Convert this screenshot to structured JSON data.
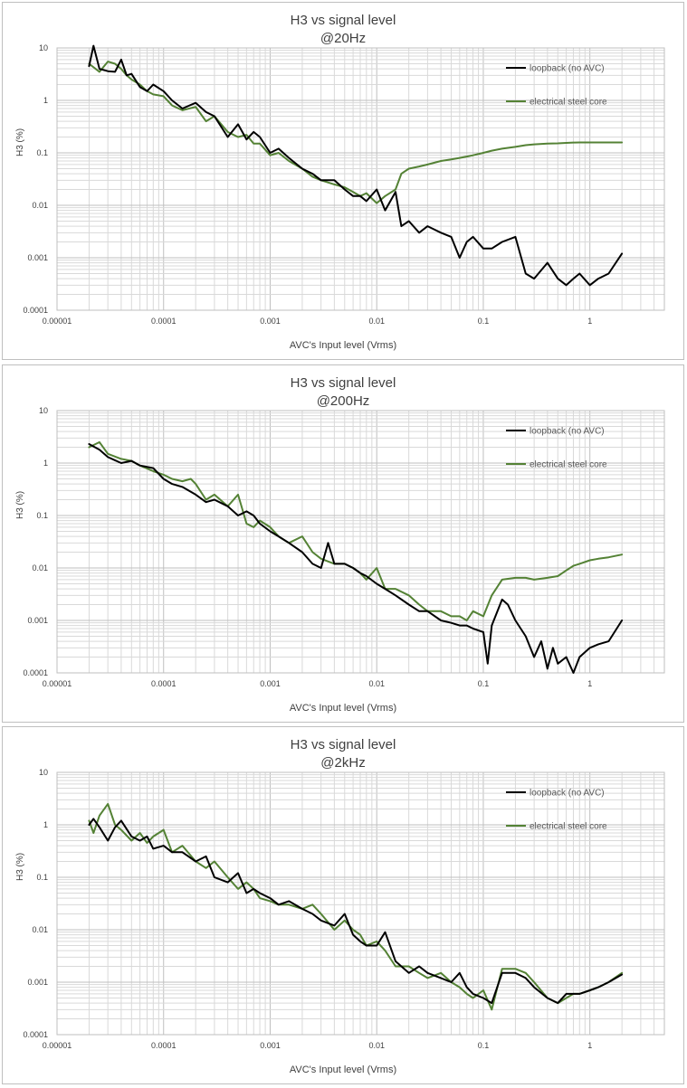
{
  "chart_data": [
    {
      "type": "line",
      "title": "H3 vs signal level",
      "subtitle": "@20Hz",
      "xlabel": "AVC's Input level (Vrms)",
      "ylabel": "H3 (%)",
      "x_scale": "log",
      "y_scale": "log",
      "xlim": [
        1e-05,
        5
      ],
      "ylim": [
        0.0001,
        10
      ],
      "x_tick_labels": [
        "0.00001",
        "0.0001",
        "0.001",
        "0.01",
        "0.1",
        "1"
      ],
      "y_tick_labels": [
        "10",
        "1",
        "0.1",
        "0.01",
        "0.001",
        "0.0001"
      ],
      "grid": true,
      "legend_position": "top-right",
      "series": [
        {
          "name": "loopback (no AVC)",
          "color": "#000000",
          "x": [
            2e-05,
            2.2e-05,
            2.5e-05,
            3e-05,
            3.5e-05,
            4e-05,
            4.5e-05,
            5e-05,
            6e-05,
            7e-05,
            8e-05,
            0.0001,
            0.00012,
            0.00015,
            0.0002,
            0.00025,
            0.0003,
            0.0004,
            0.0005,
            0.0006,
            0.0007,
            0.0008,
            0.001,
            0.0012,
            0.0015,
            0.002,
            0.0025,
            0.003,
            0.004,
            0.005,
            0.006,
            0.007,
            0.008,
            0.01,
            0.012,
            0.015,
            0.017,
            0.02,
            0.025,
            0.03,
            0.04,
            0.05,
            0.06,
            0.07,
            0.08,
            0.1,
            0.12,
            0.15,
            0.2,
            0.25,
            0.3,
            0.4,
            0.5,
            0.6,
            0.7,
            0.8,
            1.0,
            1.2,
            1.5,
            2.0
          ],
          "y": [
            4.5,
            11.0,
            4.0,
            3.6,
            3.5,
            6.0,
            3.0,
            3.2,
            1.8,
            1.5,
            2.0,
            1.5,
            1.0,
            0.7,
            0.9,
            0.6,
            0.5,
            0.2,
            0.35,
            0.18,
            0.25,
            0.2,
            0.1,
            0.12,
            0.08,
            0.05,
            0.04,
            0.03,
            0.03,
            0.02,
            0.015,
            0.015,
            0.012,
            0.02,
            0.008,
            0.018,
            0.004,
            0.005,
            0.003,
            0.004,
            0.003,
            0.0025,
            0.001,
            0.002,
            0.0025,
            0.0015,
            0.0015,
            0.002,
            0.0025,
            0.0005,
            0.0004,
            0.0008,
            0.0004,
            0.0003,
            0.0004,
            0.0005,
            0.0003,
            0.0004,
            0.0005,
            0.0012
          ]
        },
        {
          "name": "electrical steel core",
          "color": "#548235",
          "x": [
            2e-05,
            2.5e-05,
            3e-05,
            3.5e-05,
            4e-05,
            4.5e-05,
            5e-05,
            6e-05,
            7e-05,
            8e-05,
            0.0001,
            0.00012,
            0.00015,
            0.0002,
            0.00025,
            0.0003,
            0.0004,
            0.0005,
            0.0006,
            0.0007,
            0.0008,
            0.001,
            0.0012,
            0.0015,
            0.002,
            0.0025,
            0.003,
            0.004,
            0.005,
            0.006,
            0.007,
            0.008,
            0.01,
            0.012,
            0.015,
            0.017,
            0.02,
            0.025,
            0.03,
            0.04,
            0.05,
            0.06,
            0.07,
            0.08,
            0.1,
            0.12,
            0.15,
            0.2,
            0.25,
            0.3,
            0.4,
            0.5,
            0.6,
            0.7,
            0.8,
            1.0,
            1.2,
            1.5,
            2.0
          ],
          "y": [
            5.0,
            3.5,
            5.5,
            5.0,
            4.0,
            3.0,
            2.5,
            2.0,
            1.5,
            1.3,
            1.2,
            0.8,
            0.65,
            0.75,
            0.4,
            0.5,
            0.25,
            0.2,
            0.22,
            0.15,
            0.15,
            0.09,
            0.1,
            0.07,
            0.05,
            0.035,
            0.03,
            0.025,
            0.022,
            0.018,
            0.015,
            0.017,
            0.011,
            0.015,
            0.02,
            0.04,
            0.05,
            0.055,
            0.06,
            0.07,
            0.075,
            0.08,
            0.085,
            0.09,
            0.1,
            0.11,
            0.12,
            0.13,
            0.14,
            0.145,
            0.15,
            0.152,
            0.155,
            0.157,
            0.158,
            0.158,
            0.158,
            0.158,
            0.158
          ]
        }
      ]
    },
    {
      "type": "line",
      "title": "H3 vs signal level",
      "subtitle": "@200Hz",
      "xlabel": "AVC's Input level (Vrms)",
      "ylabel": "H3 (%)",
      "x_scale": "log",
      "y_scale": "log",
      "xlim": [
        1e-05,
        5
      ],
      "ylim": [
        0.0001,
        10
      ],
      "x_tick_labels": [
        "0.00001",
        "0.0001",
        "0.001",
        "0.01",
        "0.1",
        "1"
      ],
      "y_tick_labels": [
        "10",
        "1",
        "0.1",
        "0.01",
        "0.001",
        "0.0001"
      ],
      "grid": true,
      "legend_position": "top-right",
      "series": [
        {
          "name": "loopback (no AVC)",
          "color": "#000000",
          "x": [
            2e-05,
            2.5e-05,
            3e-05,
            4e-05,
            5e-05,
            6e-05,
            8e-05,
            0.0001,
            0.00012,
            0.00015,
            0.0002,
            0.00025,
            0.0003,
            0.0004,
            0.0005,
            0.0006,
            0.0007,
            0.0008,
            0.001,
            0.0012,
            0.0015,
            0.002,
            0.0025,
            0.003,
            0.0035,
            0.004,
            0.005,
            0.006,
            0.007,
            0.008,
            0.01,
            0.012,
            0.015,
            0.02,
            0.025,
            0.03,
            0.04,
            0.05,
            0.06,
            0.07,
            0.08,
            0.1,
            0.11,
            0.12,
            0.15,
            0.17,
            0.2,
            0.25,
            0.3,
            0.35,
            0.4,
            0.45,
            0.5,
            0.6,
            0.7,
            0.8,
            1.0,
            1.2,
            1.5,
            2.0
          ],
          "y": [
            2.3,
            1.8,
            1.3,
            1.0,
            1.1,
            0.9,
            0.8,
            0.5,
            0.4,
            0.35,
            0.25,
            0.18,
            0.2,
            0.15,
            0.1,
            0.12,
            0.1,
            0.07,
            0.05,
            0.04,
            0.03,
            0.02,
            0.012,
            0.01,
            0.03,
            0.012,
            0.012,
            0.01,
            0.008,
            0.007,
            0.005,
            0.004,
            0.003,
            0.002,
            0.0015,
            0.0015,
            0.001,
            0.0009,
            0.0008,
            0.0008,
            0.0007,
            0.0006,
            0.00015,
            0.0008,
            0.0025,
            0.002,
            0.001,
            0.0005,
            0.0002,
            0.0004,
            0.00012,
            0.0003,
            0.00015,
            0.0002,
            0.0001,
            0.0002,
            0.0003,
            0.00035,
            0.0004,
            0.001
          ]
        },
        {
          "name": "electrical steel core",
          "color": "#548235",
          "x": [
            2e-05,
            2.5e-05,
            3e-05,
            4e-05,
            5e-05,
            6e-05,
            8e-05,
            0.0001,
            0.00012,
            0.00015,
            0.00018,
            0.0002,
            0.00025,
            0.0003,
            0.0004,
            0.0005,
            0.0006,
            0.0007,
            0.0008,
            0.001,
            0.0012,
            0.0015,
            0.002,
            0.0025,
            0.003,
            0.004,
            0.005,
            0.006,
            0.007,
            0.008,
            0.01,
            0.012,
            0.015,
            0.02,
            0.025,
            0.03,
            0.04,
            0.05,
            0.06,
            0.07,
            0.08,
            0.1,
            0.12,
            0.15,
            0.2,
            0.25,
            0.3,
            0.4,
            0.5,
            0.6,
            0.7,
            0.8,
            1.0,
            1.2,
            1.5,
            2.0
          ],
          "y": [
            2.0,
            2.5,
            1.5,
            1.2,
            1.1,
            0.9,
            0.7,
            0.6,
            0.5,
            0.45,
            0.5,
            0.4,
            0.2,
            0.25,
            0.15,
            0.25,
            0.07,
            0.06,
            0.08,
            0.06,
            0.04,
            0.03,
            0.04,
            0.02,
            0.015,
            0.012,
            0.012,
            0.01,
            0.008,
            0.006,
            0.01,
            0.004,
            0.004,
            0.003,
            0.002,
            0.0015,
            0.0015,
            0.0012,
            0.0012,
            0.001,
            0.0015,
            0.0012,
            0.003,
            0.006,
            0.0065,
            0.0065,
            0.006,
            0.0065,
            0.007,
            0.009,
            0.011,
            0.012,
            0.014,
            0.015,
            0.016,
            0.018
          ]
        }
      ]
    },
    {
      "type": "line",
      "title": "H3 vs signal level",
      "subtitle": "@2kHz",
      "xlabel": "AVC's Input level (Vrms)",
      "ylabel": "H3 (%)",
      "x_scale": "log",
      "y_scale": "log",
      "xlim": [
        1e-05,
        5
      ],
      "ylim": [
        0.0001,
        10
      ],
      "x_tick_labels": [
        "0.00001",
        "0.0001",
        "0.001",
        "0.01",
        "0.1",
        "1"
      ],
      "y_tick_labels": [
        "10",
        "1",
        "0.1",
        "0.01",
        "0.001",
        "0.0001"
      ],
      "grid": true,
      "legend_position": "top-right",
      "series": [
        {
          "name": "loopback (no AVC)",
          "color": "#000000",
          "x": [
            2e-05,
            2.2e-05,
            2.5e-05,
            3e-05,
            3.5e-05,
            4e-05,
            5e-05,
            6e-05,
            7e-05,
            8e-05,
            0.0001,
            0.00012,
            0.00015,
            0.0002,
            0.00025,
            0.0003,
            0.0004,
            0.0005,
            0.0006,
            0.0007,
            0.0008,
            0.001,
            0.0012,
            0.0015,
            0.002,
            0.0025,
            0.003,
            0.004,
            0.005,
            0.006,
            0.007,
            0.008,
            0.01,
            0.012,
            0.015,
            0.02,
            0.025,
            0.03,
            0.04,
            0.05,
            0.06,
            0.07,
            0.08,
            0.1,
            0.12,
            0.15,
            0.2,
            0.25,
            0.3,
            0.4,
            0.5,
            0.6,
            0.7,
            0.8,
            1.0,
            1.2,
            1.5,
            2.0
          ],
          "y": [
            1.0,
            1.3,
            0.9,
            0.5,
            0.9,
            1.2,
            0.6,
            0.5,
            0.6,
            0.35,
            0.4,
            0.3,
            0.3,
            0.2,
            0.25,
            0.1,
            0.08,
            0.12,
            0.05,
            0.06,
            0.05,
            0.04,
            0.03,
            0.035,
            0.025,
            0.02,
            0.015,
            0.012,
            0.02,
            0.008,
            0.006,
            0.005,
            0.005,
            0.009,
            0.0025,
            0.0015,
            0.002,
            0.0015,
            0.0012,
            0.001,
            0.0015,
            0.0008,
            0.0006,
            0.0005,
            0.0004,
            0.0015,
            0.0015,
            0.0012,
            0.0008,
            0.0005,
            0.0004,
            0.0006,
            0.0006,
            0.0006,
            0.0007,
            0.0008,
            0.001,
            0.0014
          ]
        },
        {
          "name": "electrical steel core",
          "color": "#548235",
          "x": [
            2e-05,
            2.2e-05,
            2.5e-05,
            3e-05,
            3.5e-05,
            4e-05,
            5e-05,
            6e-05,
            7e-05,
            8e-05,
            0.0001,
            0.00012,
            0.00015,
            0.0002,
            0.00025,
            0.0003,
            0.0004,
            0.0005,
            0.0006,
            0.0007,
            0.0008,
            0.001,
            0.0012,
            0.0015,
            0.002,
            0.0025,
            0.003,
            0.004,
            0.005,
            0.006,
            0.007,
            0.008,
            0.01,
            0.012,
            0.015,
            0.02,
            0.025,
            0.03,
            0.04,
            0.05,
            0.06,
            0.07,
            0.08,
            0.1,
            0.12,
            0.15,
            0.2,
            0.25,
            0.3,
            0.4,
            0.5,
            0.6,
            0.7,
            0.8,
            1.0,
            1.2,
            1.5,
            2.0
          ],
          "y": [
            1.2,
            0.7,
            1.5,
            2.5,
            1.0,
            0.8,
            0.5,
            0.7,
            0.45,
            0.6,
            0.8,
            0.3,
            0.4,
            0.2,
            0.15,
            0.2,
            0.1,
            0.06,
            0.08,
            0.06,
            0.04,
            0.035,
            0.03,
            0.03,
            0.025,
            0.03,
            0.02,
            0.01,
            0.015,
            0.01,
            0.008,
            0.005,
            0.006,
            0.004,
            0.002,
            0.002,
            0.0015,
            0.0012,
            0.0015,
            0.001,
            0.0008,
            0.0006,
            0.0005,
            0.0007,
            0.0003,
            0.0018,
            0.0018,
            0.0015,
            0.001,
            0.0005,
            0.0004,
            0.0005,
            0.0006,
            0.0006,
            0.0007,
            0.0008,
            0.001,
            0.0015
          ]
        }
      ]
    }
  ]
}
